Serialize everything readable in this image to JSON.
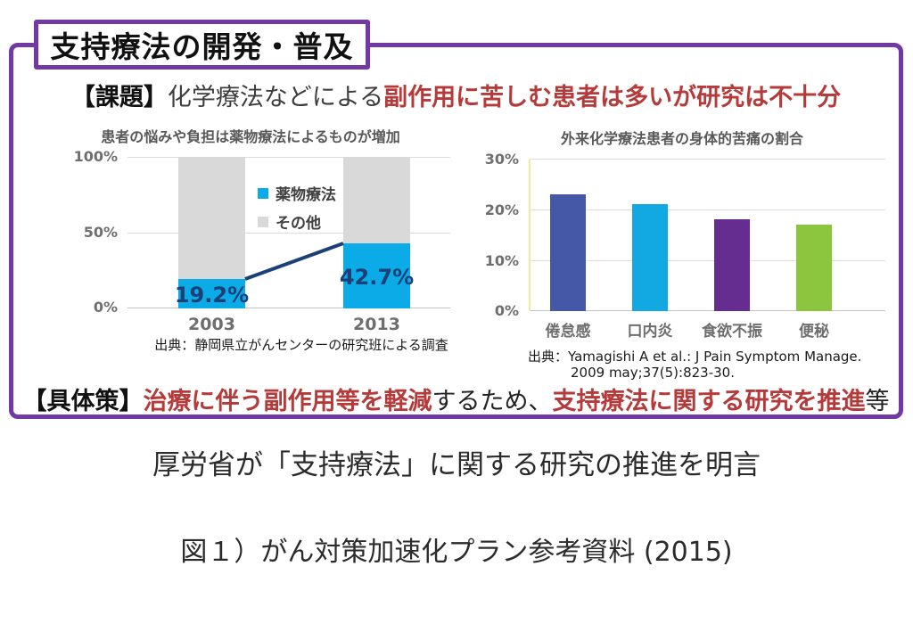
{
  "header": {
    "title": "支持療法の開発・普及"
  },
  "issue": {
    "label": "【課題】",
    "plain": "化学療法などによる",
    "red": "副作用に苦しむ患者は多いが研究は不十分"
  },
  "measure": {
    "label": "【具体策】",
    "red1": "治療に伴う副作用等を軽減",
    "plain1": "するため、",
    "red2": "支持療法に関する研究を推進",
    "plain2": "等"
  },
  "footer": {
    "statement": "厚労省が「支持療法」に関する研究の推進を明言",
    "caption": "図１）がん対策加速化プラン参考資料 (2015)"
  },
  "colors": {
    "frame_purple": "#7239a3",
    "text_red": "#b53b3b",
    "trend_navy": "#1b4078",
    "axis_gray": "#6e6e6e"
  },
  "chart_data": [
    {
      "type": "bar",
      "subtype": "stacked-100-with-trend-line",
      "title": "患者の悩みや負担は薬物療法によるものが増加",
      "categories": [
        "2003",
        "2013"
      ],
      "series": [
        {
          "name": "薬物療法",
          "color": "#0aabe6",
          "values": [
            19.2,
            42.7
          ]
        },
        {
          "name": "その他",
          "color": "#d9d9d9",
          "values": [
            80.8,
            57.3
          ]
        }
      ],
      "value_labels": [
        "19.2%",
        "42.7%"
      ],
      "yticks": [
        "100%",
        "50%",
        "0%"
      ],
      "ylim": [
        0,
        100
      ],
      "grid": true,
      "legend_position": "center",
      "source": "出典：静岡県立がんセンターの研究班による調査"
    },
    {
      "type": "bar",
      "title": "外来化学療法患者の身体的苦痛の割合",
      "categories": [
        "倦怠感",
        "口内炎",
        "食欲不振",
        "便秘"
      ],
      "values": [
        23,
        21,
        18,
        17
      ],
      "colors": [
        "#4558a7",
        "#12a9e3",
        "#662d91",
        "#8cc63f"
      ],
      "yticks": [
        "30%",
        "20%",
        "10%",
        "0%"
      ],
      "ylim": [
        0,
        30
      ],
      "grid": true,
      "source_line1": "出典：Yamagishi A et al.: J Pain Symptom Manage.",
      "source_line2": "2009 may;37(5):823-30."
    }
  ]
}
